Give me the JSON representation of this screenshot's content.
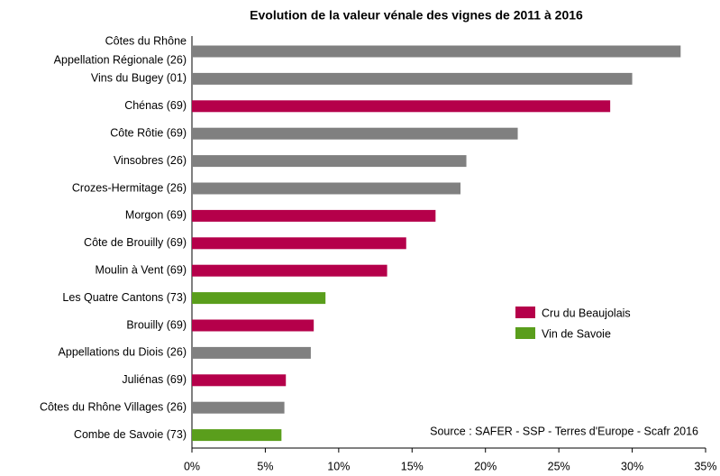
{
  "chart_data": {
    "type": "hbar",
    "title": "Evolution de la valeur vénale des vignes de 2011 à 2016",
    "categories": [
      "Côtes du Rhône\nAppellation Régionale (26)",
      "Vins du Bugey (01)",
      "Chénas (69)",
      "Côte Rôtie (69)",
      "Vinsobres (26)",
      "Crozes-Hermitage (26)",
      "Morgon (69)",
      "Côte de Brouilly (69)",
      "Moulin à Vent (69)",
      "Les Quatre Cantons (73)",
      "Brouilly (69)",
      "Appellations du Diois (26)",
      "Juliénas (69)",
      "Côtes du Rhône Villages (26)",
      "Combe de Savoie (73)"
    ],
    "values": [
      33.3,
      30.0,
      28.5,
      22.2,
      18.7,
      18.3,
      16.6,
      14.6,
      13.3,
      9.1,
      8.3,
      8.1,
      6.4,
      6.3,
      6.1
    ],
    "colors": [
      "#808080",
      "#808080",
      "#b5004a",
      "#808080",
      "#808080",
      "#808080",
      "#b5004a",
      "#b5004a",
      "#b5004a",
      "#5a9e1c",
      "#b5004a",
      "#808080",
      "#b5004a",
      "#808080",
      "#5a9e1c"
    ],
    "legend_entries": [
      {
        "name": "Cru du Beaujolais",
        "color": "#b5004a"
      },
      {
        "name": "Vin de Savoie",
        "color": "#5a9e1c"
      }
    ],
    "xlim": [
      0,
      35
    ],
    "xticks": [
      {
        "value": 0,
        "label": "0%"
      },
      {
        "value": 5,
        "label": "5%"
      },
      {
        "value": 10,
        "label": "10%"
      },
      {
        "value": 15,
        "label": "15%"
      },
      {
        "value": 20,
        "label": "20%"
      },
      {
        "value": 25,
        "label": "25%"
      },
      {
        "value": 30,
        "label": "30%"
      },
      {
        "value": 35,
        "label": "35%"
      }
    ],
    "source": "Source : SAFER - SSP - Terres d'Europe - Scafr 2016"
  }
}
